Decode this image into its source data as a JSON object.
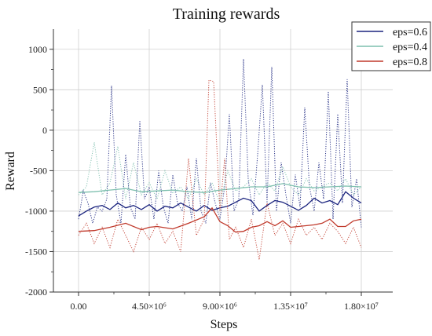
{
  "chart_data": {
    "type": "line",
    "title": "Training rewards",
    "xlabel": "Steps",
    "ylabel": "Reward",
    "xlim": [
      -1600000,
      20000000
    ],
    "ylim": [
      -2000,
      1250
    ],
    "x_ticks": [
      {
        "value": 0,
        "label": "0.00"
      },
      {
        "value": 4500000,
        "label": "4.50×10⁶"
      },
      {
        "value": 9000000,
        "label": "9.00×10⁶"
      },
      {
        "value": 13500000,
        "label": "1.35×10⁷"
      },
      {
        "value": 18000000,
        "label": "1.80×10⁷"
      }
    ],
    "y_ticks": [
      -2000,
      -1500,
      -1000,
      -500,
      0,
      500,
      1000
    ],
    "grid": true,
    "legend_position": "top-right",
    "series": [
      {
        "name": "eps=0.6",
        "color": "#1a237e",
        "smoothed": [
          [
            0,
            -1060
          ],
          [
            500000,
            -1000
          ],
          [
            1000000,
            -950
          ],
          [
            1500000,
            -930
          ],
          [
            2000000,
            -980
          ],
          [
            2500000,
            -900
          ],
          [
            3000000,
            -960
          ],
          [
            3500000,
            -930
          ],
          [
            4000000,
            -980
          ],
          [
            4500000,
            -920
          ],
          [
            5000000,
            -1000
          ],
          [
            5500000,
            -940
          ],
          [
            6000000,
            -960
          ],
          [
            6500000,
            -900
          ],
          [
            7000000,
            -950
          ],
          [
            7500000,
            -1000
          ],
          [
            8000000,
            -930
          ],
          [
            8500000,
            -990
          ],
          [
            9000000,
            -960
          ],
          [
            9500000,
            -940
          ],
          [
            10000000,
            -890
          ],
          [
            10500000,
            -840
          ],
          [
            11000000,
            -870
          ],
          [
            11500000,
            -1000
          ],
          [
            12000000,
            -930
          ],
          [
            12500000,
            -870
          ],
          [
            13000000,
            -890
          ],
          [
            13500000,
            -940
          ],
          [
            14000000,
            -990
          ],
          [
            14500000,
            -930
          ],
          [
            15000000,
            -840
          ],
          [
            15500000,
            -900
          ],
          [
            16000000,
            -870
          ],
          [
            16500000,
            -920
          ],
          [
            17000000,
            -760
          ],
          [
            17500000,
            -840
          ],
          [
            18000000,
            -900
          ]
        ],
        "raw": [
          [
            0,
            -1100
          ],
          [
            300000,
            -750
          ],
          [
            600000,
            -900
          ],
          [
            900000,
            -1150
          ],
          [
            1200000,
            -950
          ],
          [
            1500000,
            -1000
          ],
          [
            1800000,
            -850
          ],
          [
            2100000,
            550
          ],
          [
            2400000,
            -800
          ],
          [
            2700000,
            -1150
          ],
          [
            3000000,
            -300
          ],
          [
            3300000,
            -950
          ],
          [
            3600000,
            -1100
          ],
          [
            3900000,
            120
          ],
          [
            4200000,
            -850
          ],
          [
            4500000,
            -700
          ],
          [
            4800000,
            -1100
          ],
          [
            5100000,
            -500
          ],
          [
            5400000,
            -950
          ],
          [
            5700000,
            -1150
          ],
          [
            6000000,
            -550
          ],
          [
            6300000,
            -900
          ],
          [
            6600000,
            -1000
          ],
          [
            6900000,
            -700
          ],
          [
            7200000,
            -1100
          ],
          [
            7500000,
            -350
          ],
          [
            7800000,
            -1000
          ],
          [
            8100000,
            -1150
          ],
          [
            8400000,
            -650
          ],
          [
            8700000,
            -900
          ],
          [
            9000000,
            -1100
          ],
          [
            9300000,
            -700
          ],
          [
            9600000,
            200
          ],
          [
            9900000,
            -1000
          ],
          [
            10200000,
            -850
          ],
          [
            10500000,
            880
          ],
          [
            10800000,
            -600
          ],
          [
            11100000,
            -1050
          ],
          [
            11400000,
            -300
          ],
          [
            11700000,
            560
          ],
          [
            12000000,
            -900
          ],
          [
            12300000,
            780
          ],
          [
            12600000,
            -1000
          ],
          [
            12900000,
            -400
          ],
          [
            13200000,
            -800
          ],
          [
            13500000,
            -1150
          ],
          [
            13800000,
            -550
          ],
          [
            14100000,
            -950
          ],
          [
            14400000,
            280
          ],
          [
            14700000,
            -700
          ],
          [
            15000000,
            -1000
          ],
          [
            15300000,
            -400
          ],
          [
            15600000,
            -850
          ],
          [
            15900000,
            480
          ],
          [
            16200000,
            -1100
          ],
          [
            16500000,
            200
          ],
          [
            16800000,
            -900
          ],
          [
            17100000,
            630
          ],
          [
            17400000,
            -950
          ],
          [
            17700000,
            -600
          ],
          [
            18000000,
            -1200
          ]
        ]
      },
      {
        "name": "eps=0.4",
        "color": "#7dbfae",
        "smoothed": [
          [
            0,
            -770
          ],
          [
            1000000,
            -760
          ],
          [
            2000000,
            -740
          ],
          [
            3000000,
            -720
          ],
          [
            4000000,
            -760
          ],
          [
            5000000,
            -750
          ],
          [
            6000000,
            -740
          ],
          [
            7000000,
            -760
          ],
          [
            8000000,
            -770
          ],
          [
            9000000,
            -740
          ],
          [
            10000000,
            -720
          ],
          [
            11000000,
            -700
          ],
          [
            12000000,
            -700
          ],
          [
            13000000,
            -660
          ],
          [
            14000000,
            -700
          ],
          [
            15000000,
            -710
          ],
          [
            16000000,
            -700
          ],
          [
            17000000,
            -690
          ],
          [
            18000000,
            -700
          ]
        ],
        "raw": [
          [
            0,
            -800
          ],
          [
            500000,
            -700
          ],
          [
            1000000,
            -150
          ],
          [
            1500000,
            -800
          ],
          [
            2000000,
            -650
          ],
          [
            2500000,
            -200
          ],
          [
            3000000,
            -850
          ],
          [
            3500000,
            -400
          ],
          [
            4000000,
            -800
          ],
          [
            4500000,
            -650
          ],
          [
            5000000,
            -850
          ],
          [
            5500000,
            -500
          ],
          [
            6000000,
            -780
          ],
          [
            6500000,
            -700
          ],
          [
            7000000,
            -850
          ],
          [
            7500000,
            -600
          ],
          [
            8000000,
            -800
          ],
          [
            8500000,
            -650
          ],
          [
            9000000,
            -900
          ],
          [
            9500000,
            -500
          ],
          [
            10000000,
            -750
          ],
          [
            10500000,
            -700
          ],
          [
            11000000,
            -600
          ],
          [
            11500000,
            -800
          ],
          [
            12000000,
            -650
          ],
          [
            12500000,
            -750
          ],
          [
            13000000,
            -450
          ],
          [
            13500000,
            -700
          ],
          [
            14000000,
            -800
          ],
          [
            14500000,
            -600
          ],
          [
            15000000,
            -750
          ],
          [
            15500000,
            -700
          ],
          [
            16000000,
            -650
          ],
          [
            16500000,
            -750
          ],
          [
            17000000,
            -600
          ],
          [
            17500000,
            -800
          ],
          [
            18000000,
            -700
          ]
        ]
      },
      {
        "name": "eps=0.8",
        "color": "#c0392b",
        "smoothed": [
          [
            0,
            -1250
          ],
          [
            1000000,
            -1240
          ],
          [
            2000000,
            -1200
          ],
          [
            3000000,
            -1150
          ],
          [
            4000000,
            -1230
          ],
          [
            4500000,
            -1200
          ],
          [
            5000000,
            -1190
          ],
          [
            6000000,
            -1220
          ],
          [
            7000000,
            -1150
          ],
          [
            8000000,
            -1070
          ],
          [
            8500000,
            -960
          ],
          [
            9000000,
            -1130
          ],
          [
            9500000,
            -1180
          ],
          [
            10000000,
            -1260
          ],
          [
            10500000,
            -1250
          ],
          [
            11000000,
            -1200
          ],
          [
            11500000,
            -1180
          ],
          [
            12000000,
            -1130
          ],
          [
            12500000,
            -1180
          ],
          [
            13000000,
            -1120
          ],
          [
            13500000,
            -1200
          ],
          [
            14000000,
            -1190
          ],
          [
            15000000,
            -1170
          ],
          [
            15500000,
            -1150
          ],
          [
            16000000,
            -1100
          ],
          [
            16500000,
            -1190
          ],
          [
            17000000,
            -1190
          ],
          [
            17500000,
            -1120
          ],
          [
            18000000,
            -1100
          ]
        ],
        "raw": [
          [
            0,
            -1300
          ],
          [
            500000,
            -1150
          ],
          [
            1000000,
            -1400
          ],
          [
            1500000,
            -1200
          ],
          [
            2000000,
            -1450
          ],
          [
            2500000,
            -1100
          ],
          [
            3000000,
            -1300
          ],
          [
            3500000,
            -1500
          ],
          [
            4000000,
            -1200
          ],
          [
            4500000,
            -1350
          ],
          [
            5000000,
            -1150
          ],
          [
            5500000,
            -1400
          ],
          [
            6000000,
            -1250
          ],
          [
            6500000,
            -1500
          ],
          [
            7000000,
            -350
          ],
          [
            7500000,
            -1300
          ],
          [
            8000000,
            -1100
          ],
          [
            8300000,
            620
          ],
          [
            8600000,
            600
          ],
          [
            9000000,
            -1000
          ],
          [
            9300000,
            -350
          ],
          [
            9600000,
            -1350
          ],
          [
            10000000,
            -1200
          ],
          [
            10500000,
            -1450
          ],
          [
            11000000,
            -1100
          ],
          [
            11500000,
            -1600
          ],
          [
            12000000,
            -900
          ],
          [
            12500000,
            -1300
          ],
          [
            13000000,
            -1150
          ],
          [
            13500000,
            -1400
          ],
          [
            14000000,
            -1100
          ],
          [
            14500000,
            -1300
          ],
          [
            15000000,
            -1200
          ],
          [
            15500000,
            -1350
          ],
          [
            16000000,
            -1150
          ],
          [
            16500000,
            -1250
          ],
          [
            17000000,
            -1400
          ],
          [
            17500000,
            -1200
          ],
          [
            18000000,
            -1450
          ]
        ]
      }
    ]
  }
}
